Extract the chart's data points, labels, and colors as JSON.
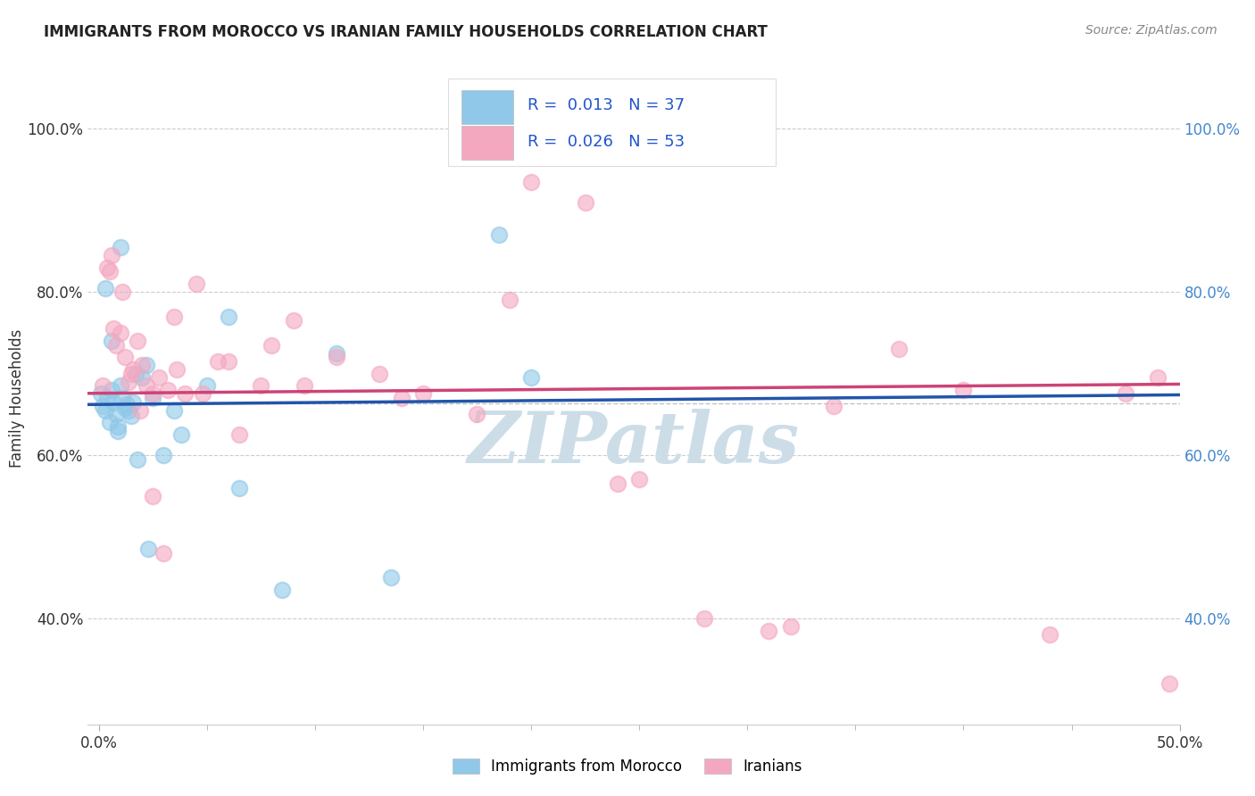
{
  "title": "IMMIGRANTS FROM MOROCCO VS IRANIAN FAMILY HOUSEHOLDS CORRELATION CHART",
  "source": "Source: ZipAtlas.com",
  "ylabel": "Family Households",
  "legend_label1": "Immigrants from Morocco",
  "legend_label2": "Iranians",
  "R1": "0.013",
  "N1": "37",
  "R2": "0.026",
  "N2": "53",
  "xlim": [
    -0.5,
    50.0
  ],
  "ylim": [
    27.0,
    107.0
  ],
  "xtick_positions": [
    0.0,
    50.0
  ],
  "xticklabels": [
    "0.0%",
    "50.0%"
  ],
  "yticks": [
    40.0,
    60.0,
    80.0,
    100.0
  ],
  "yticklabels": [
    "40.0%",
    "60.0%",
    "80.0%",
    "100.0%"
  ],
  "color_blue": "#8fc8e8",
  "color_pink": "#f4a8c0",
  "color_line_blue": "#2255aa",
  "color_line_pink": "#cc4477",
  "background_color": "#ffffff",
  "watermark_color": "#ccdde8",
  "blue_x": [
    0.1,
    0.2,
    0.3,
    0.4,
    0.5,
    0.6,
    0.7,
    0.8,
    0.9,
    1.0,
    1.1,
    1.2,
    1.3,
    1.4,
    1.5,
    1.7,
    2.0,
    2.2,
    2.5,
    3.0,
    3.5,
    5.0,
    6.5,
    8.5,
    13.5,
    18.5,
    0.3,
    0.6,
    1.0,
    1.6,
    2.3,
    3.8,
    6.0,
    11.0,
    20.0,
    0.9,
    1.8
  ],
  "blue_y": [
    67.5,
    66.0,
    65.5,
    67.0,
    64.0,
    68.0,
    66.5,
    65.0,
    63.5,
    68.5,
    67.0,
    65.8,
    66.2,
    65.5,
    64.8,
    70.0,
    69.5,
    71.0,
    67.0,
    60.0,
    65.5,
    68.5,
    56.0,
    43.5,
    45.0,
    87.0,
    80.5,
    74.0,
    85.5,
    66.5,
    48.5,
    62.5,
    77.0,
    72.5,
    69.5,
    63.0,
    59.5
  ],
  "pink_x": [
    0.2,
    0.4,
    0.6,
    0.8,
    1.0,
    1.2,
    1.4,
    1.6,
    1.8,
    2.0,
    2.2,
    2.5,
    2.8,
    3.2,
    3.6,
    4.0,
    4.5,
    5.5,
    6.5,
    7.5,
    9.0,
    11.0,
    13.0,
    15.0,
    17.5,
    20.0,
    22.5,
    25.0,
    28.0,
    31.0,
    34.0,
    37.0,
    40.0,
    44.0,
    47.5,
    49.5,
    1.5,
    2.5,
    3.0,
    4.8,
    8.0,
    0.5,
    0.7,
    1.1,
    1.9,
    3.5,
    6.0,
    9.5,
    14.0,
    19.0,
    24.0,
    32.0,
    49.0
  ],
  "pink_y": [
    68.5,
    83.0,
    84.5,
    73.5,
    75.0,
    72.0,
    69.0,
    70.5,
    74.0,
    71.0,
    68.5,
    67.5,
    69.5,
    68.0,
    70.5,
    67.5,
    81.0,
    71.5,
    62.5,
    68.5,
    76.5,
    72.0,
    70.0,
    67.5,
    65.0,
    93.5,
    91.0,
    57.0,
    40.0,
    38.5,
    66.0,
    73.0,
    68.0,
    38.0,
    67.5,
    32.0,
    70.0,
    55.0,
    48.0,
    67.5,
    73.5,
    82.5,
    75.5,
    80.0,
    65.5,
    77.0,
    71.5,
    68.5,
    67.0,
    79.0,
    56.5,
    39.0,
    69.5
  ]
}
